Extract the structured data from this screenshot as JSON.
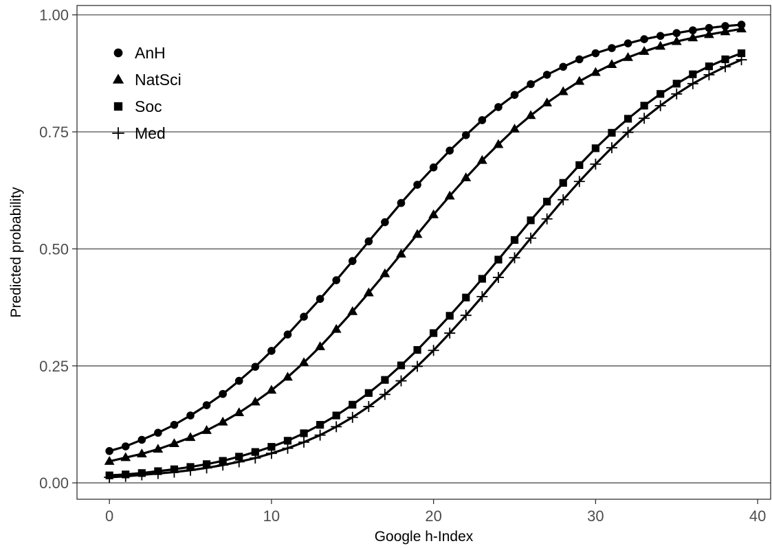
{
  "chart_data": {
    "type": "line",
    "xlabel": "Google h-Index",
    "ylabel": "Predicted probability",
    "xlim": [
      -2,
      40.8
    ],
    "ylim": [
      -0.035,
      1.02
    ],
    "x_ticks": [
      0,
      10,
      20,
      30,
      40
    ],
    "x_tick_labels": [
      "0",
      "10",
      "20",
      "30",
      "40"
    ],
    "y_ticks": [
      0,
      0.25,
      0.5,
      0.75,
      1
    ],
    "y_tick_labels": [
      "0.00",
      "0.25",
      "0.50",
      "0.75",
      "1.00"
    ],
    "grid": "horizontal-major",
    "legend_position": "top-left",
    "series": [
      {
        "name": "AnH",
        "marker": "circle",
        "values": [
          0.068,
          0.078,
          0.092,
          0.107,
          0.124,
          0.144,
          0.166,
          0.19,
          0.218,
          0.248,
          0.282,
          0.317,
          0.355,
          0.393,
          0.433,
          0.474,
          0.516,
          0.557,
          0.598,
          0.637,
          0.674,
          0.71,
          0.743,
          0.775,
          0.803,
          0.829,
          0.852,
          0.872,
          0.889,
          0.905,
          0.918,
          0.929,
          0.939,
          0.948,
          0.955,
          0.961,
          0.967,
          0.972,
          0.976,
          0.979
        ]
      },
      {
        "name": "NatSci",
        "marker": "triangle",
        "values": [
          0.046,
          0.054,
          0.062,
          0.072,
          0.084,
          0.097,
          0.112,
          0.13,
          0.15,
          0.173,
          0.198,
          0.226,
          0.257,
          0.291,
          0.328,
          0.366,
          0.406,
          0.447,
          0.489,
          0.531,
          0.573,
          0.613,
          0.652,
          0.689,
          0.723,
          0.756,
          0.785,
          0.812,
          0.836,
          0.858,
          0.877,
          0.894,
          0.909,
          0.922,
          0.933,
          0.943,
          0.951,
          0.958,
          0.964,
          0.97
        ]
      },
      {
        "name": "Soc",
        "marker": "square",
        "values": [
          0.016,
          0.018,
          0.021,
          0.025,
          0.029,
          0.034,
          0.04,
          0.047,
          0.056,
          0.066,
          0.077,
          0.09,
          0.106,
          0.124,
          0.144,
          0.167,
          0.192,
          0.22,
          0.251,
          0.284,
          0.32,
          0.357,
          0.396,
          0.436,
          0.477,
          0.519,
          0.561,
          0.601,
          0.641,
          0.679,
          0.715,
          0.748,
          0.778,
          0.806,
          0.831,
          0.853,
          0.873,
          0.89,
          0.905,
          0.918
        ]
      },
      {
        "name": "Med",
        "marker": "plus",
        "values": [
          0.012,
          0.014,
          0.017,
          0.02,
          0.023,
          0.027,
          0.032,
          0.038,
          0.045,
          0.053,
          0.063,
          0.074,
          0.087,
          0.102,
          0.12,
          0.14,
          0.163,
          0.189,
          0.218,
          0.249,
          0.283,
          0.32,
          0.358,
          0.398,
          0.439,
          0.481,
          0.523,
          0.564,
          0.605,
          0.644,
          0.681,
          0.716,
          0.749,
          0.779,
          0.806,
          0.831,
          0.853,
          0.872,
          0.889,
          0.904
        ]
      }
    ]
  }
}
